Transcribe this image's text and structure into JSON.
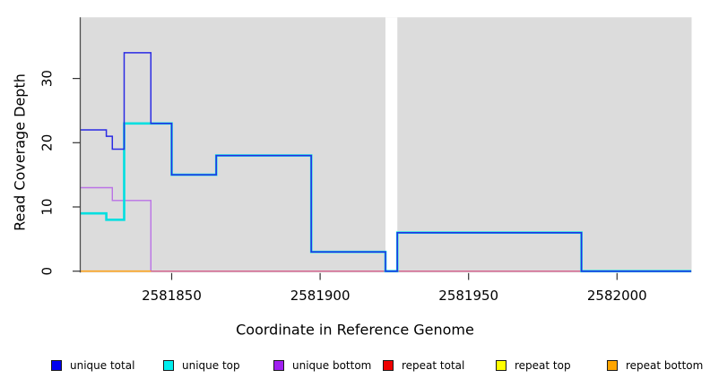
{
  "figure": {
    "xlabel": "Coordinate in Reference Genome",
    "ylabel": "Read Coverage Depth"
  },
  "chart_data": {
    "type": "line",
    "subtype": "step",
    "title": "",
    "xlabel": "Coordinate in Reference Genome",
    "ylabel": "Read Coverage Depth",
    "xlim": [
      2581819,
      2582025
    ],
    "ylim": [
      0,
      39.5
    ],
    "x_ticks": [
      2581850,
      2581900,
      2581950,
      2582000
    ],
    "y_ticks": [
      0,
      10,
      20,
      30
    ],
    "grid": false,
    "plot_bg_color": "#DCDCDC",
    "axis_color": "#4d4d4d",
    "legend_position": "bottom",
    "masked_region": {
      "from": 2581922,
      "to": 2581926,
      "color": "#FFFFFF"
    },
    "series": [
      {
        "id": "unique_total",
        "name": "unique total",
        "color": "#0000EE",
        "line_color": "#2A2AE4",
        "z": 6,
        "steps": [
          [
            2581819,
            22
          ],
          [
            2581828,
            21
          ],
          [
            2581830,
            19
          ],
          [
            2581834,
            34
          ],
          [
            2581843,
            23
          ],
          [
            2581850,
            15
          ],
          [
            2581865,
            18
          ],
          [
            2581897,
            3
          ],
          [
            2581922,
            0
          ],
          [
            2581926,
            6
          ],
          [
            2581988,
            0
          ]
        ],
        "x_end": 2582025
      },
      {
        "id": "unique_top",
        "name": "unique top",
        "color": "#00EEEE",
        "line_color": "#00DFE0",
        "z": 5,
        "steps": [
          [
            2581819,
            9
          ],
          [
            2581828,
            8
          ],
          [
            2581834,
            23
          ],
          [
            2581850,
            15
          ],
          [
            2581865,
            18
          ],
          [
            2581897,
            3
          ],
          [
            2581922,
            0
          ],
          [
            2581926,
            6
          ],
          [
            2581988,
            0
          ]
        ],
        "x_end": 2582025
      },
      {
        "id": "unique_bottom",
        "name": "unique bottom",
        "color": "#A020F0",
        "line_color": "#B45FE8",
        "z": 2,
        "steps": [
          [
            2581819,
            13
          ],
          [
            2581830,
            11
          ],
          [
            2581843,
            0
          ]
        ],
        "x_end": 2582025
      },
      {
        "id": "repeat_total",
        "name": "repeat total",
        "color": "#EE0000",
        "line_color": "#E25570",
        "z": 3,
        "steps": [
          [
            2581819,
            0
          ]
        ],
        "x_end": 2582025
      },
      {
        "id": "repeat_top",
        "name": "repeat top",
        "color": "#FFFF00",
        "line_color": "#FFFF00",
        "z": 1,
        "steps": [
          [
            2581819,
            0
          ]
        ],
        "x_end": 2582025
      },
      {
        "id": "repeat_bottom",
        "name": "repeat bottom",
        "color": "#FFA500",
        "line_color": "#FFA51E",
        "z": 4,
        "steps": [
          [
            2581819,
            0
          ]
        ],
        "x_end": 2581843
      }
    ]
  },
  "legend": {
    "items": [
      {
        "label": "unique total",
        "color": "#0000EE"
      },
      {
        "label": "unique top",
        "color": "#00EEEE"
      },
      {
        "label": "unique bottom",
        "color": "#A020F0"
      },
      {
        "label": "repeat total",
        "color": "#EE0000"
      },
      {
        "label": "repeat top",
        "color": "#FFFF00"
      },
      {
        "label": "repeat bottom",
        "color": "#FFA500"
      }
    ]
  }
}
